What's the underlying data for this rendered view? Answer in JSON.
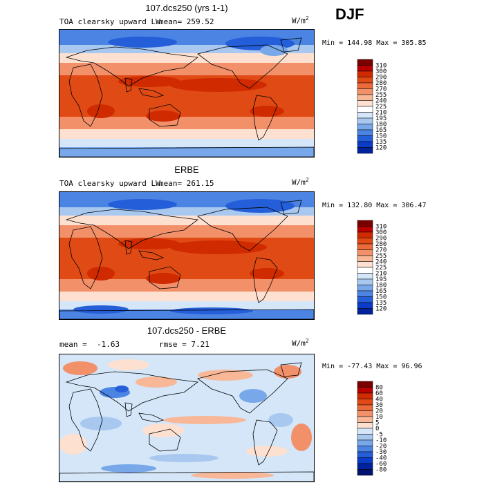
{
  "season": "DJF",
  "panels": [
    {
      "title": "107.dcs250 (yrs 1-1)",
      "left_label": "TOA clearsky upward LW",
      "stat1": "mean= 259.52",
      "stat2": "",
      "units": "W/m",
      "units_exp": "2",
      "minmax": "Min = 144.98 Max = 305.85",
      "colorbar": {
        "labels": [
          "310",
          "300",
          "290",
          "280",
          "270",
          "255",
          "240",
          "225",
          "210",
          "195",
          "180",
          "165",
          "150",
          "135",
          "120"
        ],
        "colors": [
          "#7a0000",
          "#b80000",
          "#d02a00",
          "#e04a14",
          "#ea6a3a",
          "#f2906a",
          "#f8b898",
          "#fde0d0",
          "#ffffff",
          "#d4e6f8",
          "#a8c8f0",
          "#78a8ea",
          "#4c84e4",
          "#245ed8",
          "#0a3cc8",
          "#00229c"
        ]
      },
      "map_kind": "abs1"
    },
    {
      "title": "ERBE",
      "left_label": "TOA clearsky upward LW",
      "stat1": "mean= 261.15",
      "stat2": "",
      "units": "W/m",
      "units_exp": "2",
      "minmax": "Min = 132.80 Max = 306.47",
      "colorbar": {
        "labels": [
          "310",
          "300",
          "290",
          "280",
          "270",
          "255",
          "240",
          "225",
          "210",
          "195",
          "180",
          "165",
          "150",
          "135",
          "120"
        ],
        "colors": [
          "#7a0000",
          "#b80000",
          "#d02a00",
          "#e04a14",
          "#ea6a3a",
          "#f2906a",
          "#f8b898",
          "#fde0d0",
          "#ffffff",
          "#d4e6f8",
          "#a8c8f0",
          "#78a8ea",
          "#4c84e4",
          "#245ed8",
          "#0a3cc8",
          "#00229c"
        ]
      },
      "map_kind": "abs2"
    },
    {
      "title": "107.dcs250 - ERBE",
      "left_label": "mean =",
      "stat1": "-1.63",
      "stat2": "rmse =    7.21",
      "units": "W/m",
      "units_exp": "2",
      "minmax": "Min = -77.43 Max =  96.96",
      "colorbar": {
        "labels": [
          "80",
          "60",
          "40",
          "30",
          "20",
          "10",
          "5",
          "0",
          "-5",
          "-10",
          "-20",
          "-30",
          "-40",
          "-60",
          "-80"
        ],
        "colors": [
          "#7a0000",
          "#b80000",
          "#d02a00",
          "#e04a14",
          "#ea6a3a",
          "#f2906a",
          "#f8b898",
          "#fde0d0",
          "#d4e6f8",
          "#a8c8f0",
          "#78a8ea",
          "#4c84e4",
          "#245ed8",
          "#0a3cc8",
          "#00229c",
          "#001470"
        ]
      },
      "map_kind": "diff"
    }
  ]
}
